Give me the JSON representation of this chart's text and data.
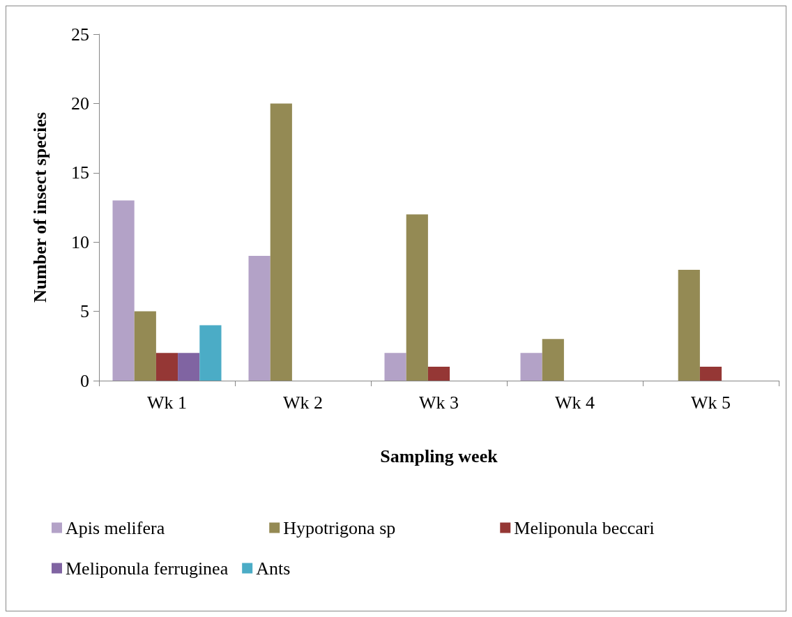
{
  "chart_data": {
    "type": "bar",
    "xlabel": "Sampling week",
    "ylabel": "Number of insect species",
    "categories": [
      "Wk 1",
      "Wk 2",
      "Wk 3",
      "Wk 4",
      "Wk 5"
    ],
    "series": [
      {
        "name": "Apis melifera",
        "color": "#b3a2c7",
        "values": [
          13,
          9,
          2,
          2,
          0
        ]
      },
      {
        "name": "Hypotrigona sp",
        "color": "#948a54",
        "values": [
          5,
          20,
          12,
          3,
          8
        ]
      },
      {
        "name": "Meliponula beccari",
        "color": "#953735",
        "values": [
          2,
          0,
          1,
          0,
          1
        ]
      },
      {
        "name": "Meliponula ferruginea",
        "color": "#8064a2",
        "values": [
          2,
          0,
          0,
          0,
          0
        ]
      },
      {
        "name": "Ants",
        "color": "#4bacc6",
        "values": [
          4,
          0,
          0,
          0,
          0
        ]
      }
    ],
    "ylim": [
      0,
      25
    ],
    "yticks": [
      0,
      5,
      10,
      15,
      20,
      25
    ],
    "grid": false,
    "legend": "bottom"
  }
}
